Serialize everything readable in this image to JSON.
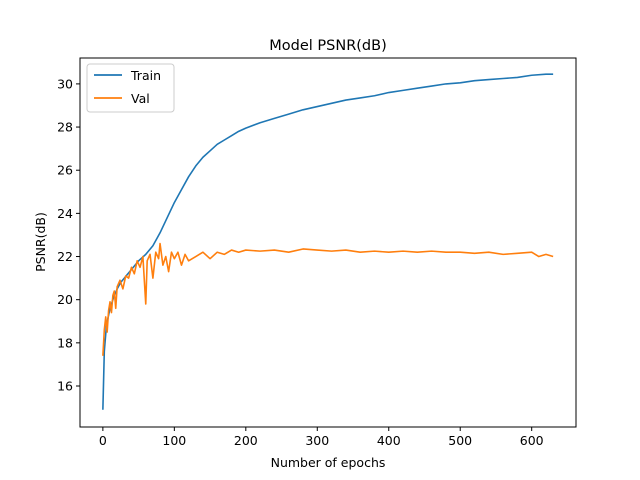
{
  "chart_data": {
    "type": "line",
    "title": "Model PSNR(dB)",
    "xlabel": "Number of epochs",
    "ylabel": "PSNR(dB)",
    "xlim": [
      -32,
      662
    ],
    "ylim": [
      14.1,
      31.2
    ],
    "xticks": [
      0,
      100,
      200,
      300,
      400,
      500,
      600
    ],
    "yticks": [
      16,
      18,
      20,
      22,
      24,
      26,
      28,
      30
    ],
    "grid": false,
    "legend_position": "top-left",
    "series": [
      {
        "name": "Train",
        "color": "#1f77b4",
        "points": [
          [
            0,
            14.9
          ],
          [
            2,
            17.6
          ],
          [
            5,
            18.8
          ],
          [
            10,
            19.6
          ],
          [
            15,
            20.1
          ],
          [
            20,
            20.5
          ],
          [
            25,
            20.8
          ],
          [
            30,
            21.0
          ],
          [
            40,
            21.4
          ],
          [
            50,
            21.8
          ],
          [
            60,
            22.1
          ],
          [
            70,
            22.5
          ],
          [
            80,
            23.1
          ],
          [
            90,
            23.8
          ],
          [
            100,
            24.5
          ],
          [
            110,
            25.1
          ],
          [
            120,
            25.7
          ],
          [
            130,
            26.2
          ],
          [
            140,
            26.6
          ],
          [
            150,
            26.9
          ],
          [
            160,
            27.2
          ],
          [
            170,
            27.4
          ],
          [
            180,
            27.6
          ],
          [
            190,
            27.8
          ],
          [
            200,
            27.95
          ],
          [
            220,
            28.2
          ],
          [
            240,
            28.4
          ],
          [
            260,
            28.6
          ],
          [
            280,
            28.8
          ],
          [
            300,
            28.95
          ],
          [
            320,
            29.1
          ],
          [
            340,
            29.25
          ],
          [
            360,
            29.35
          ],
          [
            380,
            29.45
          ],
          [
            400,
            29.6
          ],
          [
            420,
            29.7
          ],
          [
            440,
            29.8
          ],
          [
            460,
            29.9
          ],
          [
            480,
            30.0
          ],
          [
            500,
            30.05
          ],
          [
            520,
            30.15
          ],
          [
            540,
            30.2
          ],
          [
            560,
            30.25
          ],
          [
            580,
            30.3
          ],
          [
            600,
            30.4
          ],
          [
            620,
            30.45
          ],
          [
            630,
            30.45
          ]
        ]
      },
      {
        "name": "Val",
        "color": "#ff7f0e",
        "points": [
          [
            0,
            17.4
          ],
          [
            2,
            18.6
          ],
          [
            4,
            19.2
          ],
          [
            6,
            18.5
          ],
          [
            8,
            19.5
          ],
          [
            10,
            19.9
          ],
          [
            12,
            19.4
          ],
          [
            14,
            20.2
          ],
          [
            16,
            20.4
          ],
          [
            18,
            19.6
          ],
          [
            20,
            20.6
          ],
          [
            24,
            20.9
          ],
          [
            28,
            20.5
          ],
          [
            32,
            21.1
          ],
          [
            36,
            21.0
          ],
          [
            40,
            21.5
          ],
          [
            44,
            21.2
          ],
          [
            48,
            21.8
          ],
          [
            52,
            21.5
          ],
          [
            56,
            22.0
          ],
          [
            60,
            19.8
          ],
          [
            62,
            21.8
          ],
          [
            66,
            22.1
          ],
          [
            70,
            21.0
          ],
          [
            74,
            22.2
          ],
          [
            78,
            21.9
          ],
          [
            80,
            22.6
          ],
          [
            84,
            21.6
          ],
          [
            88,
            22.0
          ],
          [
            92,
            21.3
          ],
          [
            96,
            22.2
          ],
          [
            100,
            21.9
          ],
          [
            105,
            22.2
          ],
          [
            110,
            21.6
          ],
          [
            115,
            22.1
          ],
          [
            120,
            21.8
          ],
          [
            130,
            22.0
          ],
          [
            140,
            22.2
          ],
          [
            150,
            21.9
          ],
          [
            160,
            22.2
          ],
          [
            170,
            22.1
          ],
          [
            180,
            22.3
          ],
          [
            190,
            22.2
          ],
          [
            200,
            22.3
          ],
          [
            220,
            22.25
          ],
          [
            240,
            22.3
          ],
          [
            260,
            22.2
          ],
          [
            280,
            22.35
          ],
          [
            300,
            22.3
          ],
          [
            320,
            22.25
          ],
          [
            340,
            22.3
          ],
          [
            360,
            22.2
          ],
          [
            380,
            22.25
          ],
          [
            400,
            22.2
          ],
          [
            420,
            22.25
          ],
          [
            440,
            22.2
          ],
          [
            460,
            22.25
          ],
          [
            480,
            22.2
          ],
          [
            500,
            22.2
          ],
          [
            520,
            22.15
          ],
          [
            540,
            22.2
          ],
          [
            560,
            22.1
          ],
          [
            580,
            22.15
          ],
          [
            600,
            22.2
          ],
          [
            610,
            22.0
          ],
          [
            620,
            22.1
          ],
          [
            630,
            22.0
          ]
        ]
      }
    ]
  }
}
